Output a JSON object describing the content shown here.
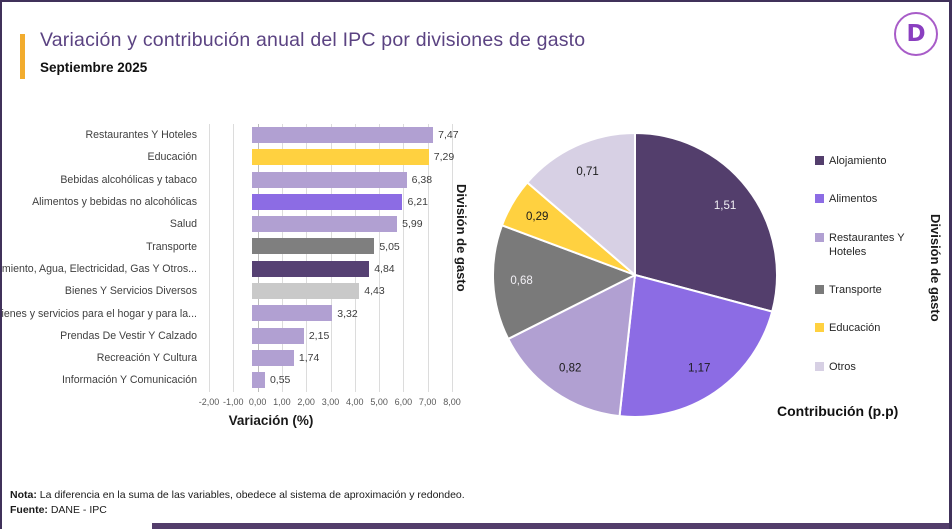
{
  "header": {
    "title": "Variación  y contribución anual del IPC por divisiones de gasto",
    "subtitle": "Septiembre 2025",
    "logo_letter": "D"
  },
  "colors": {
    "accent_bar": "#F2AC2E",
    "title_text": "#5b4382",
    "frame_border": "#40315a",
    "bottom_strip": "#533d6b",
    "gridline": "#dcdcdc"
  },
  "chart_data": [
    {
      "type": "bar",
      "orientation": "horizontal",
      "xlabel": "Variación (%)",
      "ylabel": "División de gasto",
      "xlim": [
        -2,
        8
      ],
      "grid": true,
      "xticks": [
        "-2,00",
        "-1,00",
        "0,00",
        "1,00",
        "2,00",
        "3,00",
        "4,00",
        "5,00",
        "6,00",
        "7,00",
        "8,00"
      ],
      "categories": [
        "Restaurantes Y Hoteles",
        "Educación",
        "Bebidas alcohólicas y tabaco",
        "Alimentos y bebidas no alcohólicas",
        "Salud",
        "Transporte",
        "Alojamiento, Agua, Electricidad, Gas Y Otros...",
        "Bienes Y Servicios Diversos",
        "Bienes y servicios para el hogar y para la...",
        "Prendas De Vestir Y Calzado",
        "Recreación Y Cultura",
        "Información Y Comunicación"
      ],
      "values": [
        7.47,
        7.29,
        6.38,
        6.21,
        5.99,
        5.05,
        4.84,
        4.43,
        3.32,
        2.15,
        1.74,
        0.55
      ],
      "value_labels": [
        "7,47",
        "7,29",
        "6,38",
        "6,21",
        "5,99",
        "5,05",
        "4,84",
        "4,43",
        "3,32",
        "2,15",
        "1,74",
        "0,55"
      ],
      "bar_colors": [
        "#B1A0D2",
        "#FFD140",
        "#B1A0D2",
        "#8C6CE4",
        "#B1A0D2",
        "#7F7F7F",
        "#564173",
        "#C9C9C9",
        "#B1A0D2",
        "#B1A0D2",
        "#B1A0D2",
        "#B1A0D2"
      ]
    },
    {
      "type": "pie",
      "xlabel": "Contribución (p.p)",
      "ylabel": "División de gasto",
      "legend_position": "right",
      "start_angle_deg": 0,
      "direction": "clockwise",
      "categories": [
        "Alojamiento",
        "Alimentos",
        "Restaurantes Y Hoteles",
        "Transporte",
        "Educación",
        "Otros"
      ],
      "values": [
        1.51,
        1.17,
        0.82,
        0.68,
        0.29,
        0.71
      ],
      "value_labels": [
        "1,51",
        "1,17",
        "0,82",
        "0,68",
        "0,29",
        "0,71"
      ],
      "slice_colors": [
        "#533E6C",
        "#8C6CE4",
        "#B1A0D2",
        "#7A7A7A",
        "#FFD140",
        "#D7D0E4"
      ],
      "label_colors": [
        "#f2f0f5",
        "#1a1a1a",
        "#1a1a1a",
        "#f2f0f5",
        "#1a1a1a",
        "#1a1a1a"
      ]
    }
  ],
  "footer": {
    "note_label": "Nota:",
    "note_text": " La diferencia en la suma de las variables, obedece al sistema de aproximación y redondeo.",
    "source_label": "Fuente:",
    "source_text": " DANE - IPC"
  }
}
